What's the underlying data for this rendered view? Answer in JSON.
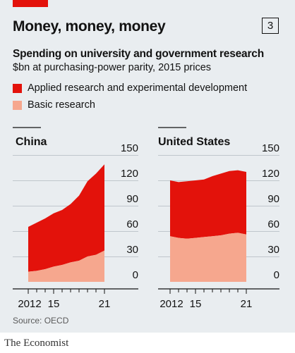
{
  "figure_number": "3",
  "headline": "Money, money, money",
  "subtitle": "Spending on university and government research",
  "units": "$bn at purchasing-power parity, 2015 prices",
  "legend": [
    {
      "label": "Applied research and experimental development",
      "color": "#e3120b"
    },
    {
      "label": "Basic research",
      "color": "#f6a78e"
    }
  ],
  "source": "Source: OECD",
  "brand": "The Economist",
  "colors": {
    "applied": "#e3120b",
    "basic": "#f6a78e",
    "background": "#e9edf0",
    "grid": "#bfc6cc",
    "axis": "#121212"
  },
  "chart_data": [
    {
      "type": "area",
      "stacked": true,
      "panel_title": "China",
      "x": [
        2012,
        2013,
        2014,
        2015,
        2016,
        2017,
        2018,
        2019,
        2020,
        2021
      ],
      "series": [
        {
          "name": "Basic research",
          "values": [
            12,
            13,
            15,
            18,
            20,
            23,
            25,
            30,
            32,
            37
          ]
        },
        {
          "name": "Applied research and experimental development",
          "values": [
            53,
            57,
            60,
            63,
            65,
            69,
            77,
            89,
            96,
            102
          ]
        }
      ],
      "ylim": [
        0,
        150
      ],
      "yticks": [
        0,
        30,
        60,
        90,
        120,
        150
      ],
      "xticks": [
        2012,
        2015,
        2021
      ],
      "xtick_labels": [
        "2012",
        "15",
        "21"
      ],
      "y_axis_side": "right",
      "grid": true
    },
    {
      "type": "area",
      "stacked": true,
      "panel_title": "United States",
      "x": [
        2012,
        2013,
        2014,
        2015,
        2016,
        2017,
        2018,
        2019,
        2020,
        2021
      ],
      "series": [
        {
          "name": "Basic research",
          "values": [
            54,
            52,
            51,
            52,
            53,
            54,
            55,
            57,
            58,
            56
          ]
        },
        {
          "name": "Applied research and experimental development",
          "values": [
            66,
            66,
            68,
            68,
            68,
            71,
            73,
            74,
            74,
            74
          ]
        }
      ],
      "ylim": [
        0,
        150
      ],
      "yticks": [
        0,
        30,
        60,
        90,
        120,
        150
      ],
      "xticks": [
        2012,
        2015,
        2021
      ],
      "xtick_labels": [
        "2012",
        "15",
        "21"
      ],
      "y_axis_side": "right",
      "grid": true
    }
  ]
}
